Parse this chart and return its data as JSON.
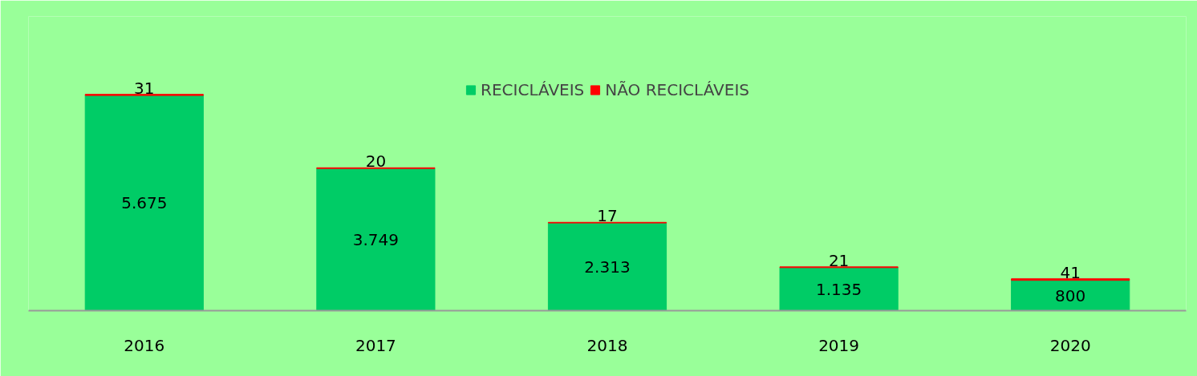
{
  "chart_data": {
    "type": "bar",
    "stacked": true,
    "categories": [
      "2016",
      "2017",
      "2018",
      "2019",
      "2020"
    ],
    "series": [
      {
        "name": "RECICLÁVEIS",
        "color": "#00cc66",
        "values": [
          5675,
          3749,
          2313,
          1135,
          800
        ],
        "value_labels": [
          "5.675",
          "3.749",
          "2.313",
          "1.135",
          "800"
        ]
      },
      {
        "name": "NÃO RECICLÁVEIS",
        "color": "#ff0000",
        "values": [
          31,
          20,
          17,
          21,
          41
        ],
        "value_labels": [
          "31",
          "20",
          "17",
          "21",
          "41"
        ]
      }
    ],
    "legend": "top",
    "grid": false,
    "tick_labels": "x"
  }
}
